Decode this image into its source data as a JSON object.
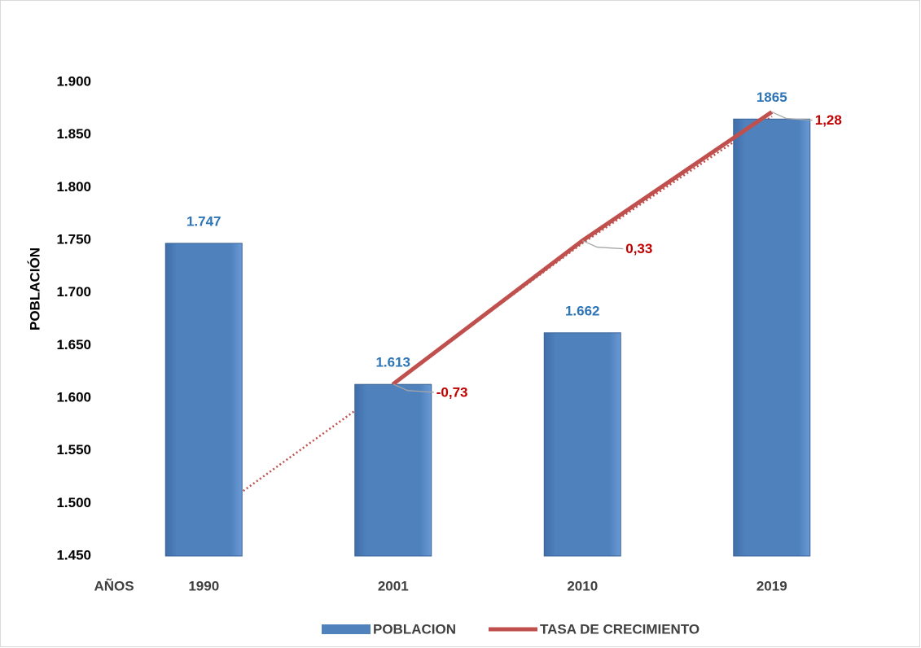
{
  "chart_data": {
    "type": "bar",
    "y_label": "POBLACIÓN",
    "x_label": "AÑOS",
    "categories": [
      "1990",
      "2001",
      "2010",
      "2019"
    ],
    "series": [
      {
        "name": "POBLACION",
        "type": "bar",
        "color": "#4f81bd",
        "values": [
          1747,
          1613,
          1662,
          1865
        ],
        "value_labels": [
          "1.747",
          "1.613",
          "1.662",
          "1865"
        ]
      },
      {
        "name": "TASA DE CRECIMIENTO",
        "type": "line",
        "axis": "y2",
        "color": "#c0504d",
        "values": [
          null,
          -0.73,
          0.33,
          1.28
        ],
        "value_labels": [
          null,
          "-0,73",
          "0,33",
          "1,28"
        ]
      }
    ],
    "ylim": [
      1450,
      1900
    ],
    "yticks": [
      {
        "value": 1450,
        "label": "1.450"
      },
      {
        "value": 1500,
        "label": "1.500"
      },
      {
        "value": 1550,
        "label": "1.550"
      },
      {
        "value": 1600,
        "label": "1.600"
      },
      {
        "value": 1650,
        "label": "1.650"
      },
      {
        "value": 1700,
        "label": "1.700"
      },
      {
        "value": 1750,
        "label": "1.750"
      },
      {
        "value": 1800,
        "label": "1.800"
      },
      {
        "value": 1850,
        "label": "1.850"
      },
      {
        "value": 1900,
        "label": "1.900"
      }
    ],
    "y2lim": [
      -2,
      1.5
    ],
    "legend": "bottom"
  }
}
